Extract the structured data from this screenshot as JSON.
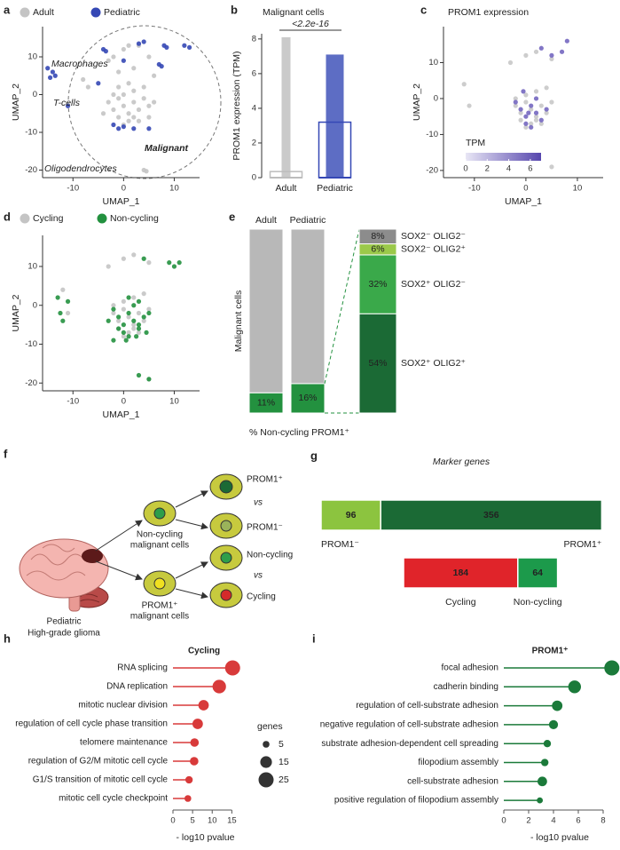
{
  "chart_data": [
    {
      "panel": "a",
      "type": "scatter",
      "xlabel": "UMAP_1",
      "ylabel": "UMAP_2",
      "xlim": [
        -16,
        15
      ],
      "ylim": [
        -22,
        18
      ],
      "xticks": [
        -10,
        0,
        10
      ],
      "yticks": [
        -20,
        -10,
        0,
        10
      ],
      "series": [
        {
          "name": "Adult",
          "color": "#c4c4c4",
          "x": [
            -3,
            -2,
            -1,
            0,
            1,
            2,
            3,
            4,
            5,
            -1,
            0,
            1,
            2,
            3,
            -2,
            0,
            2,
            4,
            1,
            -1,
            5,
            6,
            -4,
            -3,
            -2,
            0,
            1,
            3,
            5,
            -1,
            2,
            6,
            -8,
            -7,
            4,
            4.5
          ],
          "y": [
            -2,
            -4,
            -1,
            -3,
            -5,
            -2,
            -4,
            -1,
            -3,
            -6,
            -8,
            -7,
            -6,
            -7,
            0,
            0,
            1,
            2,
            3,
            2,
            -6,
            -2,
            -5,
            9,
            10,
            12,
            13,
            13,
            10,
            6,
            7,
            5,
            4,
            2,
            -20,
            -20.3
          ]
        },
        {
          "name": "Pediatric",
          "color": "#3548b5",
          "x": [
            -15,
            -14,
            -13.5,
            -14.5,
            -11,
            -4,
            -3.5,
            0,
            3,
            4,
            8,
            8.5,
            12,
            13,
            7,
            7.5,
            -5,
            0,
            -1,
            2,
            5,
            -2
          ],
          "y": [
            7,
            6,
            5,
            4.5,
            -3,
            12,
            11.5,
            9,
            13.5,
            14,
            13,
            12.5,
            13,
            12.5,
            8,
            7.5,
            3,
            -8.5,
            -9,
            -9,
            -9,
            -8
          ]
        }
      ],
      "annotations": [
        "Macrophages",
        "T-cells",
        "Malignant",
        "Oligodendrocytes"
      ]
    },
    {
      "panel": "b",
      "type": "box",
      "title": "Malignant cells",
      "ylabel": "PROM1 expression (TPM)",
      "categories": [
        "Adult",
        "Pediatric"
      ],
      "colors": [
        "#bdbdbd",
        "#3548b5"
      ],
      "label_colors": [
        "#333333",
        "#3548b5"
      ],
      "q1": [
        0,
        0
      ],
      "median": [
        0,
        0
      ],
      "q3": [
        0.35,
        3.2
      ],
      "max": [
        8.1,
        7.1
      ],
      "ylim": [
        0,
        8.3
      ],
      "yticks": [
        0,
        2,
        4,
        6,
        8
      ],
      "annotation": "<2.2e-16"
    },
    {
      "panel": "c",
      "type": "scatter",
      "title": "PROM1 expression",
      "xlabel": "UMAP_1",
      "ylabel": "UMAP_2",
      "xlim": [
        -16,
        15
      ],
      "ylim": [
        -22,
        20
      ],
      "xticks": [
        -10,
        0,
        10
      ],
      "yticks": [
        -20,
        -10,
        0,
        10
      ],
      "series": [
        {
          "color": "#c8c8c8",
          "x": [
            -2,
            -1,
            0,
            1,
            2,
            3,
            4,
            5,
            -1,
            0,
            1,
            2,
            3,
            -2,
            0,
            2,
            4,
            -3,
            0,
            2,
            5,
            -12,
            -11,
            5
          ],
          "y": [
            -2,
            -4,
            -1,
            -3,
            -5,
            -2,
            -4,
            -1,
            -6,
            -8,
            -7,
            -6,
            -7,
            0,
            1,
            2,
            3,
            10,
            12,
            13,
            11,
            4,
            -2,
            -19
          ]
        },
        {
          "color": "#7467c0",
          "x": [
            -1,
            0,
            1,
            2,
            3,
            -2,
            0,
            2,
            4,
            1,
            3,
            5,
            7,
            8,
            0.5,
            -0.5
          ],
          "y": [
            -3,
            -5,
            -2,
            -4,
            -6,
            -1,
            -7,
            0,
            -3,
            -8,
            14,
            12,
            13,
            16,
            -4,
            2
          ]
        }
      ],
      "colorbar": {
        "title": "TPM",
        "lim": [
          0,
          7
        ],
        "ticks": [
          0,
          2,
          4,
          6
        ],
        "colors": [
          "#e8e6f5",
          "#5646ad"
        ]
      }
    },
    {
      "panel": "d",
      "type": "scatter",
      "xlabel": "UMAP_1",
      "ylabel": "UMAP_2",
      "xlim": [
        -16,
        15
      ],
      "ylim": [
        -22,
        18
      ],
      "xticks": [
        -10,
        0,
        10
      ],
      "yticks": [
        -20,
        -10,
        0,
        10
      ],
      "series": [
        {
          "name": "Cycling",
          "color": "#c4c4c4",
          "x": [
            -2,
            -1,
            0,
            1,
            2,
            3,
            4,
            5,
            -1,
            0,
            1,
            2,
            3,
            -2,
            0,
            2,
            4,
            -3,
            0,
            2,
            5,
            -12,
            -11,
            5
          ],
          "y": [
            -2,
            -4,
            -1,
            -3,
            -5,
            -2,
            -4,
            -1,
            -6,
            -8,
            -7,
            -6,
            -7,
            0,
            1,
            2,
            3,
            10,
            12,
            13,
            11,
            4,
            -2,
            -19
          ]
        },
        {
          "name": "Non-cycling",
          "color": "#23913f",
          "x": [
            -1,
            0,
            1,
            2,
            3,
            -2,
            0,
            2,
            4,
            1,
            3,
            5,
            -3,
            -1,
            0.5,
            2.5,
            4.5,
            -2,
            1,
            3,
            -13,
            -12.5,
            -12,
            -11,
            3,
            5,
            4,
            9,
            10,
            11
          ],
          "y": [
            -3,
            -5,
            -2,
            -4,
            -6,
            -1,
            -7,
            0,
            -3,
            -8,
            -5,
            -2,
            -4,
            -6,
            -9,
            -8,
            -7,
            -9,
            2,
            1,
            2,
            -2,
            -4,
            1,
            -18,
            -19,
            12,
            11,
            10,
            11
          ]
        }
      ]
    },
    {
      "panel": "e",
      "type": "stacked",
      "ylabel": "Malignant cells",
      "xlabel": "% Non-cycling PROM1⁺",
      "categories": [
        "Adult",
        "Pediatric"
      ],
      "label_colors": [
        "#333333",
        "#3548b5"
      ],
      "series": [
        {
          "color": "#23913f",
          "values": [
            11,
            16
          ],
          "value_labels": [
            "11%",
            "16%"
          ]
        },
        {
          "color": "#b8b8b8",
          "values": [
            89,
            84
          ]
        }
      ],
      "breakdown": [
        {
          "name": "SOX2⁺ OLIG2⁺",
          "color": "#1b6a35",
          "value": 54,
          "value_label": "54%"
        },
        {
          "name": "SOX2⁺ OLIG2⁻",
          "color": "#3aa94a",
          "value": 32,
          "value_label": "32%"
        },
        {
          "name": "SOX2⁻ OLIG2⁺",
          "color": "#9bc94a",
          "value": 6,
          "value_label": "6%"
        },
        {
          "name": "SOX2⁻ OLIG2⁻",
          "color": "#8c8c8c",
          "value": 8,
          "value_label": "8%"
        }
      ]
    },
    {
      "panel": "g",
      "type": "hstack",
      "title": "Marker genes",
      "bars": [
        [
          {
            "name": "PROM1⁻",
            "value": 96,
            "color": "#8cc43f"
          },
          {
            "name": "PROM1⁺",
            "value": 356,
            "color": "#1b6a35"
          }
        ],
        [
          {
            "name": "Cycling",
            "value": 184,
            "color": "#e0242a"
          },
          {
            "name": "Non-cycling",
            "value": 64,
            "color": "#1c9a4b"
          }
        ]
      ]
    },
    {
      "panel": "h",
      "type": "lollipop",
      "title": "Cycling",
      "color": "#d83a3a",
      "xlabel": "- log10 pvalue",
      "categories": [
        "RNA splicing",
        "DNA replication",
        "mitotic nuclear division",
        "regulation of cell cycle phase transition",
        "telomere maintenance",
        "regulation of G2/M mitotic cell cycle",
        "G1/S transition of mitotic cell cycle",
        "mitotic cell cycle checkpoint"
      ],
      "values": [
        15.2,
        11.8,
        7.8,
        6.3,
        5.5,
        5.4,
        4.1,
        3.8
      ],
      "sizes": [
        25,
        20,
        12,
        12,
        8,
        8,
        6,
        5
      ],
      "xlim": [
        0,
        16.5
      ],
      "xticks": [
        0,
        5,
        10,
        15
      ],
      "size_legend": {
        "title": "genes",
        "values": [
          5,
          15,
          25
        ]
      }
    },
    {
      "panel": "i",
      "type": "lollipop",
      "title": "PROM1⁺",
      "color": "#1b7a3a",
      "xlabel": "- log10 pvalue",
      "categories": [
        "focal adhesion",
        "cadherin binding",
        "regulation of cell-substrate adhesion",
        "negative regulation of cell-substrate adhesion",
        "substrate adhesion-dependent cell spreading",
        "filopodium assembly",
        "cell-substrate adhesion",
        "positive regulation of filopodium assembly"
      ],
      "values": [
        8.7,
        5.7,
        4.3,
        4.0,
        3.5,
        3.3,
        3.1,
        2.9
      ],
      "sizes": [
        25,
        18,
        12,
        9,
        6,
        6,
        10,
        4
      ],
      "xlim": [
        0,
        9
      ],
      "xticks": [
        0,
        2,
        4,
        6,
        8
      ]
    }
  ],
  "diagram": {
    "panel": "f",
    "texts": [
      "PROM1⁺",
      "vs",
      "PROM1⁻",
      "Non-cycling",
      "malignant cells",
      "Pediatric",
      "High-grade glioma",
      "PROM1⁺",
      "malignant cells",
      "Non-cycling",
      "vs",
      "Cycling"
    ]
  }
}
